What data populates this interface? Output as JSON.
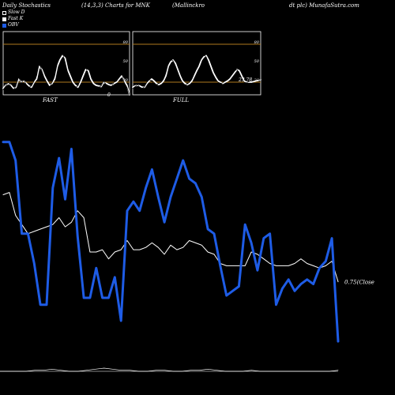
{
  "header": {
    "title_left": "Daily Stochastics",
    "params": "(14,3,3) Charts for MNK",
    "company": "(Mallinckro",
    "source": "dt plc) MunafaSutra.com"
  },
  "legend": [
    {
      "label": "Slow  D",
      "color": "#000000",
      "border": "#ffffff"
    },
    {
      "label": "Fast K",
      "color": "#ffffff",
      "border": "#ffffff"
    },
    {
      "label": "OBV",
      "color": "#1e5ce6",
      "border": "#1e5ce6"
    }
  ],
  "colors": {
    "obv": "#1e5ce6",
    "close": "#ffffff",
    "band": "#b07a1e",
    "panel_border": "#ffffff"
  },
  "chart_data": [
    {
      "type": "line",
      "title": "FAST",
      "ylim": [
        0,
        100
      ],
      "yticks": [
        20,
        50,
        80
      ],
      "bands": [
        20,
        80
      ],
      "tail_label": "0",
      "series": [
        {
          "values": [
            10,
            15,
            18,
            15,
            10,
            12,
            25,
            20,
            22,
            18,
            14,
            12,
            20,
            25,
            45,
            40,
            30,
            22,
            15,
            18,
            25,
            45,
            55,
            62,
            58,
            40,
            30,
            20,
            15,
            12,
            20,
            30,
            40,
            38,
            25,
            18,
            15,
            14,
            13,
            20,
            18,
            16,
            15,
            18,
            20,
            25,
            30,
            22,
            15,
            0
          ]
        },
        {
          "values": [
            8,
            14,
            20,
            13,
            8,
            14,
            28,
            18,
            24,
            16,
            12,
            14,
            22,
            30,
            50,
            38,
            26,
            18,
            12,
            20,
            30,
            50,
            60,
            66,
            52,
            35,
            25,
            16,
            12,
            14,
            24,
            35,
            44,
            32,
            20,
            14,
            12,
            12,
            14,
            22,
            16,
            14,
            13,
            20,
            22,
            28,
            33,
            18,
            12,
            0
          ]
        }
      ]
    },
    {
      "type": "line",
      "title": "FULL",
      "ylim": [
        0,
        100
      ],
      "yticks": [
        20,
        50,
        80
      ],
      "bands": [
        20,
        80
      ],
      "tail_label": "23.78",
      "series": [
        {
          "values": [
            12,
            14,
            15,
            14,
            12,
            12,
            18,
            22,
            25,
            22,
            18,
            16,
            18,
            22,
            30,
            45,
            52,
            55,
            50,
            40,
            30,
            22,
            18,
            16,
            18,
            22,
            30,
            38,
            45,
            55,
            60,
            62,
            55,
            45,
            35,
            28,
            22,
            20,
            18,
            20,
            22,
            25,
            30,
            35,
            40,
            38,
            30,
            22,
            20,
            20,
            20,
            21,
            22,
            23,
            24
          ]
        },
        {
          "values": [
            10,
            13,
            16,
            12,
            10,
            13,
            20,
            24,
            22,
            18,
            16,
            18,
            20,
            25,
            35,
            50,
            56,
            54,
            46,
            36,
            26,
            18,
            15,
            17,
            20,
            25,
            34,
            42,
            50,
            58,
            63,
            60,
            50,
            40,
            30,
            24,
            20,
            18,
            19,
            22,
            24,
            28,
            33,
            38,
            40,
            34,
            26,
            20,
            19,
            21,
            22,
            23,
            24,
            24,
            24
          ]
        }
      ]
    },
    {
      "type": "line",
      "ylim": [
        0,
        100
      ],
      "close_label": "0.75(Close",
      "series": [
        {
          "name": "OBV",
          "values": [
            88,
            88,
            80,
            48,
            48,
            35,
            17,
            17,
            68,
            81,
            63,
            85,
            47,
            20,
            20,
            33,
            20,
            20,
            29,
            10,
            58,
            62,
            58,
            68,
            76,
            64,
            53,
            64,
            72,
            80,
            72,
            70,
            64,
            50,
            48,
            34,
            21,
            23,
            25,
            52,
            44,
            32,
            46,
            48,
            17,
            24,
            28,
            23,
            26,
            28,
            26,
            33,
            36,
            46,
            1
          ]
        },
        {
          "name": "Close",
          "values": [
            65,
            66,
            56,
            52,
            48,
            49,
            50,
            51,
            52,
            55,
            51,
            53,
            58,
            55,
            40,
            40,
            41,
            37,
            40,
            41,
            45,
            41,
            41,
            42,
            44,
            42,
            39,
            43,
            41,
            42,
            45,
            44,
            43,
            40,
            39,
            35,
            34,
            34,
            34,
            34,
            40,
            39,
            37,
            35,
            34,
            34,
            34,
            35,
            37,
            35,
            34,
            33,
            34,
            36,
            27
          ]
        }
      ]
    }
  ]
}
